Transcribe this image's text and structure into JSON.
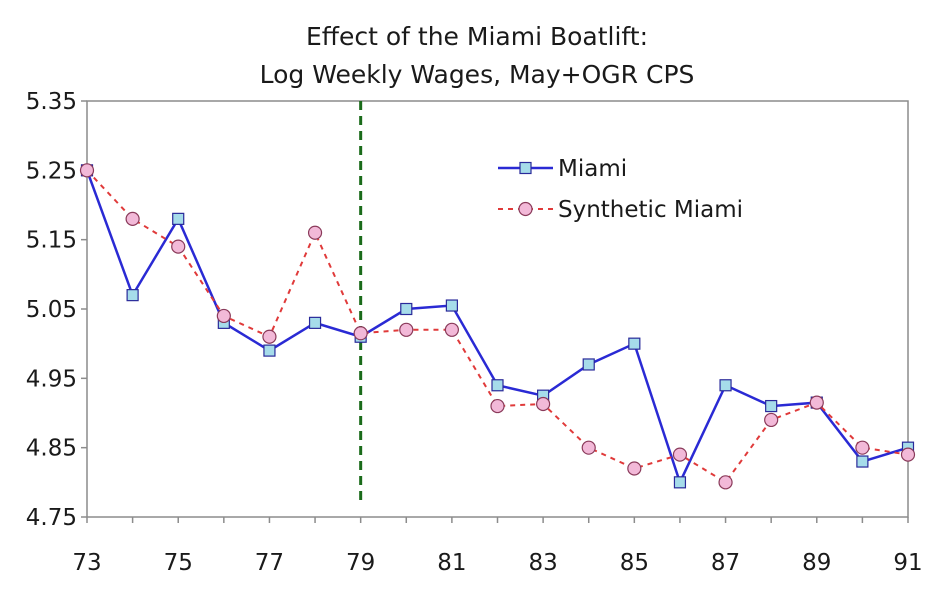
{
  "chart_data": {
    "type": "line",
    "title": [
      "Effect of the Miami Boatlift:",
      "Log Weekly Wages, May+OGR CPS"
    ],
    "xlabel": "",
    "ylabel": "",
    "x": [
      73,
      74,
      75,
      76,
      77,
      78,
      79,
      80,
      81,
      82,
      83,
      84,
      85,
      86,
      87,
      88,
      89,
      90,
      91
    ],
    "x_tick_labels": [
      "73",
      "75",
      "77",
      "79",
      "81",
      "83",
      "85",
      "87",
      "89",
      "91"
    ],
    "x_tick_values": [
      73,
      75,
      77,
      79,
      81,
      83,
      85,
      87,
      89,
      91
    ],
    "xlim": [
      73,
      91
    ],
    "y_tick_labels": [
      "5.35",
      "5.25",
      "5.15",
      "5.05",
      "4.95",
      "4.85",
      "4.75"
    ],
    "y_tick_values": [
      5.35,
      5.25,
      5.15,
      5.05,
      4.95,
      4.85,
      4.75
    ],
    "ylim": [
      4.75,
      5.35
    ],
    "grid": false,
    "legend": "top-right",
    "vertical_marker": {
      "x": 79,
      "color": "#1a6b1a",
      "style": "dashed"
    },
    "series": [
      {
        "name": "Miami",
        "color": "#2a2ad4",
        "marker": "square",
        "marker_fill": "#a6dcea",
        "line_style": "solid",
        "values": [
          5.25,
          5.07,
          5.18,
          5.03,
          4.99,
          5.03,
          5.01,
          5.05,
          5.055,
          4.94,
          4.925,
          4.97,
          5.0,
          4.8,
          4.94,
          4.91,
          4.915,
          4.83,
          4.85
        ]
      },
      {
        "name": "Synthetic Miami",
        "color": "#e03a3a",
        "marker": "circle",
        "marker_fill": "#f2b9d8",
        "line_style": "dashed",
        "values": [
          5.25,
          5.18,
          5.14,
          5.04,
          5.01,
          5.16,
          5.015,
          5.02,
          5.02,
          4.91,
          4.913,
          4.85,
          4.82,
          4.84,
          4.8,
          4.89,
          4.915,
          4.85,
          4.84
        ]
      }
    ]
  }
}
